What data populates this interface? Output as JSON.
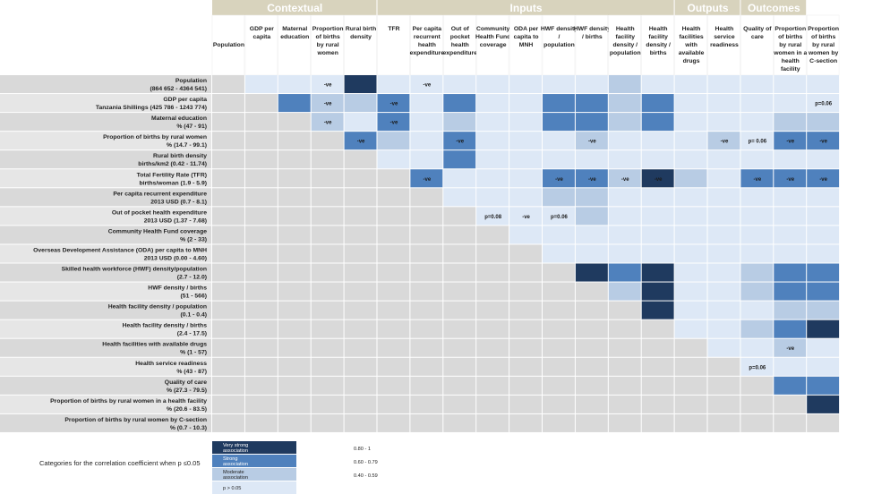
{
  "chart_data": {
    "type": "heatmap",
    "groups": [
      {
        "name": "Contextual",
        "span": 5
      },
      {
        "name": "Inputs",
        "span": 9
      },
      {
        "name": "Outputs",
        "span": 2
      },
      {
        "name": "Outcomes",
        "span": 2
      }
    ],
    "columns": [
      "Population",
      "GDP per capita",
      "Maternal education",
      "Proportion of births by rural women",
      "Rural birth density",
      "TFR",
      "Per capita recurrent health expenditure",
      "Out of pocket health expenditure",
      "Community Health Fund coverage",
      "ODA per capita to MNH",
      "HWF density / population",
      "HWF density / births",
      "Health facility density / population",
      "Health facility density / births",
      "Health facilities with available drugs",
      "Health service readiness",
      "Quality of care",
      "Proportion of births by rural women in a health facility",
      "Proportion of births by rural women by C-section"
    ],
    "rows": [
      {
        "name": "Population",
        "range": "(864 652 - 4364 541)"
      },
      {
        "name": "GDP per capita",
        "range": "Tanzania Shillings (425 786 - 1243 774)"
      },
      {
        "name": "Maternal education",
        "range": "% (47 - 91)"
      },
      {
        "name": "Proportion of births by rural women",
        "range": "% (14.7 - 99.1)"
      },
      {
        "name": "Rural birth density",
        "range": "births/km2 (0.42 - 11.74)"
      },
      {
        "name": "Total Fertility Rate (TFR)",
        "range": "births/woman (1.9 - 5.9)"
      },
      {
        "name": "Per capita recurrent expenditure",
        "range": "2013 USD (0.7 - 8.1)"
      },
      {
        "name": "Out of pocket health expenditure",
        "range": "2013 USD (1.37 - 7.68)"
      },
      {
        "name": "Community Health Fund coverage",
        "range": "% (2 - 33)"
      },
      {
        "name": "Overseas Development Assistance (ODA) per capita to MNH",
        "range": "2013 USD (0.00 - 4.60)"
      },
      {
        "name": "Skilled health workforce (HWF) density/population",
        "range": "(2.7 - 12.0)"
      },
      {
        "name": "HWF density / births",
        "range": "(51 - 566)"
      },
      {
        "name": "Health facility density / population",
        "range": "(0.1 - 0.4)"
      },
      {
        "name": "Health facility density / births",
        "range": "(2.4 - 17.5)"
      },
      {
        "name": "Health facilities with available drugs",
        "range": "% (1 - 57)"
      },
      {
        "name": "Health service readiness",
        "range": "% (43 - 87)"
      },
      {
        "name": "Quality of care",
        "range": "% (27.3 - 79.5)"
      },
      {
        "name": "Proportion of births by rural women in a health facility",
        "range": "% (20.6 - 83.5)"
      },
      {
        "name": "Proportion of births by rural women by C-section",
        "range": "% (0.7 - 10.3)"
      }
    ],
    "categories": {
      "na": "#d9d9d9",
      "p": "#dde8f6",
      "m": "#b8cce4",
      "s": "#4f81bd",
      "v": "#1f3a5f"
    },
    "matrix": [
      [
        "na",
        "p",
        "p",
        "p",
        "v",
        "p",
        "p",
        "p",
        "p",
        "p",
        "p",
        "p",
        "m",
        "p",
        "p",
        "p",
        "p",
        "p",
        "p"
      ],
      [
        "na",
        "na",
        "s",
        "m",
        "m",
        "s",
        "p",
        "s",
        "p",
        "p",
        "s",
        "s",
        "m",
        "s",
        "p",
        "p",
        "p",
        "p",
        "p"
      ],
      [
        "na",
        "na",
        "na",
        "m",
        "p",
        "s",
        "p",
        "m",
        "p",
        "p",
        "s",
        "s",
        "m",
        "s",
        "p",
        "p",
        "p",
        "m",
        "m"
      ],
      [
        "na",
        "na",
        "na",
        "na",
        "s",
        "m",
        "p",
        "s",
        "p",
        "p",
        "p",
        "m",
        "p",
        "p",
        "p",
        "m",
        "p",
        "s",
        "s"
      ],
      [
        "na",
        "na",
        "na",
        "na",
        "na",
        "p",
        "p",
        "s",
        "p",
        "p",
        "p",
        "p",
        "p",
        "p",
        "p",
        "p",
        "p",
        "p",
        "p"
      ],
      [
        "na",
        "na",
        "na",
        "na",
        "na",
        "na",
        "s",
        "p",
        "p",
        "p",
        "s",
        "s",
        "m",
        "v",
        "m",
        "p",
        "s",
        "s",
        "s"
      ],
      [
        "na",
        "na",
        "na",
        "na",
        "na",
        "na",
        "na",
        "p",
        "p",
        "p",
        "m",
        "m",
        "p",
        "p",
        "p",
        "p",
        "p",
        "p",
        "p"
      ],
      [
        "na",
        "na",
        "na",
        "na",
        "na",
        "na",
        "na",
        "na",
        "p",
        "p",
        "p",
        "m",
        "p",
        "p",
        "p",
        "p",
        "p",
        "p",
        "p"
      ],
      [
        "na",
        "na",
        "na",
        "na",
        "na",
        "na",
        "na",
        "na",
        "na",
        "p",
        "p",
        "p",
        "p",
        "p",
        "p",
        "p",
        "p",
        "p",
        "p"
      ],
      [
        "na",
        "na",
        "na",
        "na",
        "na",
        "na",
        "na",
        "na",
        "na",
        "na",
        "p",
        "p",
        "p",
        "p",
        "p",
        "p",
        "p",
        "p",
        "p"
      ],
      [
        "na",
        "na",
        "na",
        "na",
        "na",
        "na",
        "na",
        "na",
        "na",
        "na",
        "na",
        "v",
        "s",
        "v",
        "p",
        "p",
        "m",
        "s",
        "s"
      ],
      [
        "na",
        "na",
        "na",
        "na",
        "na",
        "na",
        "na",
        "na",
        "na",
        "na",
        "na",
        "na",
        "m",
        "v",
        "p",
        "p",
        "m",
        "s",
        "s"
      ],
      [
        "na",
        "na",
        "na",
        "na",
        "na",
        "na",
        "na",
        "na",
        "na",
        "na",
        "na",
        "na",
        "na",
        "v",
        "p",
        "p",
        "p",
        "m",
        "m"
      ],
      [
        "na",
        "na",
        "na",
        "na",
        "na",
        "na",
        "na",
        "na",
        "na",
        "na",
        "na",
        "na",
        "na",
        "na",
        "p",
        "p",
        "m",
        "s",
        "v"
      ],
      [
        "na",
        "na",
        "na",
        "na",
        "na",
        "na",
        "na",
        "na",
        "na",
        "na",
        "na",
        "na",
        "na",
        "na",
        "na",
        "p",
        "p",
        "m",
        "p"
      ],
      [
        "na",
        "na",
        "na",
        "na",
        "na",
        "na",
        "na",
        "na",
        "na",
        "na",
        "na",
        "na",
        "na",
        "na",
        "na",
        "na",
        "p",
        "p",
        "p"
      ],
      [
        "na",
        "na",
        "na",
        "na",
        "na",
        "na",
        "na",
        "na",
        "na",
        "na",
        "na",
        "na",
        "na",
        "na",
        "na",
        "na",
        "na",
        "s",
        "s"
      ],
      [
        "na",
        "na",
        "na",
        "na",
        "na",
        "na",
        "na",
        "na",
        "na",
        "na",
        "na",
        "na",
        "na",
        "na",
        "na",
        "na",
        "na",
        "na",
        "v"
      ],
      [
        "na",
        "na",
        "na",
        "na",
        "na",
        "na",
        "na",
        "na",
        "na",
        "na",
        "na",
        "na",
        "na",
        "na",
        "na",
        "na",
        "na",
        "na",
        "na"
      ]
    ],
    "annotations": [
      {
        "row": 0,
        "col": 3,
        "text": "-ve"
      },
      {
        "row": 0,
        "col": 6,
        "text": "-ve"
      },
      {
        "row": 1,
        "col": 3,
        "text": "-ve"
      },
      {
        "row": 1,
        "col": 5,
        "text": "-ve"
      },
      {
        "row": 1,
        "col": 18,
        "text": "p=0.06"
      },
      {
        "row": 2,
        "col": 3,
        "text": "-ve"
      },
      {
        "row": 2,
        "col": 5,
        "text": "-ve"
      },
      {
        "row": 3,
        "col": 4,
        "text": "-ve"
      },
      {
        "row": 3,
        "col": 7,
        "text": "-ve"
      },
      {
        "row": 3,
        "col": 11,
        "text": "-ve"
      },
      {
        "row": 3,
        "col": 15,
        "text": "-ve"
      },
      {
        "row": 3,
        "col": 16,
        "text": "p= 0.06"
      },
      {
        "row": 3,
        "col": 17,
        "text": "-ve"
      },
      {
        "row": 3,
        "col": 18,
        "text": "-ve"
      },
      {
        "row": 5,
        "col": 6,
        "text": "-ve"
      },
      {
        "row": 5,
        "col": 10,
        "text": "-ve"
      },
      {
        "row": 5,
        "col": 11,
        "text": "-ve"
      },
      {
        "row": 5,
        "col": 12,
        "text": "-ve"
      },
      {
        "row": 5,
        "col": 13,
        "text": "-ve"
      },
      {
        "row": 5,
        "col": 16,
        "text": "-ve"
      },
      {
        "row": 5,
        "col": 17,
        "text": "-ve"
      },
      {
        "row": 5,
        "col": 18,
        "text": "-ve"
      },
      {
        "row": 7,
        "col": 8,
        "text": "p=0.08"
      },
      {
        "row": 7,
        "col": 9,
        "text": "-ve"
      },
      {
        "row": 7,
        "col": 10,
        "text": "p=0.06"
      },
      {
        "row": 14,
        "col": 17,
        "text": "-ve"
      },
      {
        "row": 15,
        "col": 16,
        "text": "p=0.06"
      }
    ],
    "legend": {
      "title": "Categories for the correlation coefficient when p ≤0.05",
      "items": [
        {
          "key": "v",
          "label": "Very strong association",
          "range": "0.80 - 1"
        },
        {
          "key": "s",
          "label": "Strong association",
          "range": "0.60 - 0.79"
        },
        {
          "key": "m",
          "label": "Moderate association",
          "range": "0.40 - 0.59"
        },
        {
          "key": "p",
          "label": "p > 0.05",
          "range": ""
        }
      ]
    }
  }
}
